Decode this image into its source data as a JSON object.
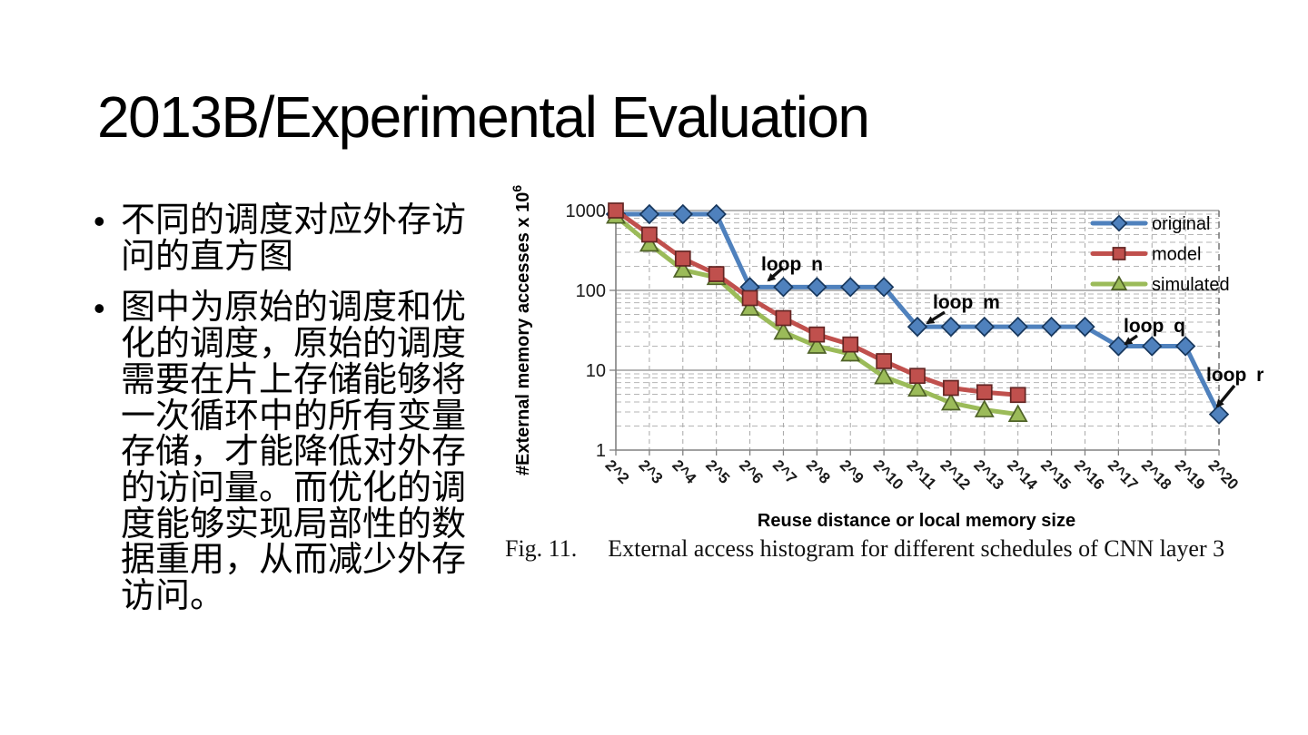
{
  "slide": {
    "title": "2013B/Experimental Evaluation",
    "bullets": [
      {
        "lines": [
          "不同的调度对应外存访",
          "问的直方图"
        ]
      },
      {
        "lines": [
          "图中为原始的调度和优",
          "化的调度，原始的调度",
          "需要在片上存储能够将",
          "一次循环中的所有变量",
          "存储，才能降低对外存",
          "的访问量。而优化的调",
          "度能够实现局部性的数",
          "据重用，从而减少外存",
          "访问。"
        ]
      }
    ]
  },
  "figure": {
    "caption_label": "Fig. 11.",
    "caption_text": "External access histogram for different schedules of CNN layer 3"
  },
  "chart_data": {
    "type": "line",
    "xlabel": "Reuse distance or local memory size",
    "ylabel": "#External memory accesses x 10",
    "ylabel_sup": "6",
    "y_scale": "log",
    "ylim": [
      1,
      1000
    ],
    "y_ticks": [
      1000,
      100,
      10,
      1
    ],
    "grid": {
      "h_major": "solid",
      "h_minor": "dashed",
      "vertical": "dashed"
    },
    "legend_position": "top-right-inside",
    "categories": [
      "2^2",
      "2^3",
      "2^4",
      "2^5",
      "2^6",
      "2^7",
      "2^8",
      "2^9",
      "2^10",
      "2^11",
      "2^12",
      "2^13",
      "2^14",
      "2^15",
      "2^16",
      "2^17",
      "2^18",
      "2^19",
      "2^20"
    ],
    "series": [
      {
        "name": "original",
        "color": "#4F81BD",
        "marker": "diamond",
        "marker_stroke": "#17375D",
        "values": [
          900,
          900,
          900,
          900,
          110,
          110,
          110,
          110,
          110,
          35,
          35,
          35,
          35,
          35,
          35,
          20,
          20,
          20,
          2.8
        ]
      },
      {
        "name": "model",
        "color": "#C0504D",
        "marker": "square",
        "marker_stroke": "#632523",
        "values": [
          1000,
          500,
          250,
          160,
          80,
          45,
          28,
          21,
          13,
          8.5,
          6,
          5.3,
          4.9,
          null,
          null,
          null,
          null,
          null,
          null
        ]
      },
      {
        "name": "simulated",
        "color": "#9BBB59",
        "marker": "triangle",
        "marker_stroke": "#4F6228",
        "values": [
          850,
          380,
          180,
          145,
          60,
          30,
          20,
          16,
          8.3,
          5.8,
          3.9,
          3.2,
          2.8,
          null,
          null,
          null,
          null,
          null,
          null
        ]
      }
    ],
    "annotations": [
      {
        "label": "loop n",
        "target_category": "2^6",
        "target_value": 110
      },
      {
        "label": "loop m",
        "target_category": "2^11",
        "target_value": 35
      },
      {
        "label": "loop q",
        "target_category": "2^17",
        "target_value": 20
      },
      {
        "label": "loop r",
        "target_category": "2^20",
        "target_value": 2.8
      }
    ]
  }
}
